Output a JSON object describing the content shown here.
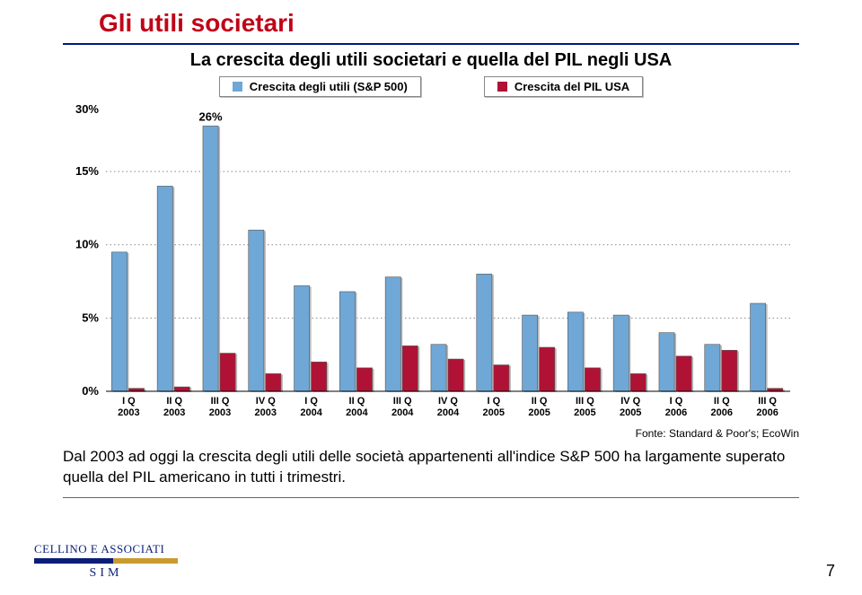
{
  "title": "Gli utili societari",
  "subtitle": "La crescita degli utili societari e quella del PIL negli USA",
  "legend": {
    "series_a": "Crescita degli utili (S&P 500)",
    "series_b": "Crescita del PIL USA"
  },
  "chart": {
    "type": "bar",
    "background_color": "#ffffff",
    "grid_color": "#e0e0e0",
    "dotted_grid_color": "#888888",
    "axis_color": "#000000",
    "label_fontsize": 10,
    "label_font": "Arial",
    "tick_font_weight": "bold",
    "y_min": 0,
    "y_max": 30,
    "y_ticks": [
      0,
      5,
      10,
      15,
      30
    ],
    "y_tick_labels": [
      "0%",
      "5%",
      "10%",
      "15%",
      "30%"
    ],
    "dotted_rows": [
      5,
      10,
      15
    ],
    "bar_gap_ratio": 0.1,
    "group_gap_ratio": 0.25,
    "bar_border": "#555555",
    "bar_shadow": "#bbbbbb",
    "annotation": {
      "category_index": 2,
      "value": 26,
      "label": "26%",
      "fontsize": 13,
      "font_weight": "bold"
    },
    "series": [
      {
        "name": "a",
        "color": "#6fa7d6",
        "values": [
          9.5,
          14.0,
          26.0,
          11.0,
          7.2,
          6.8,
          7.8,
          3.2,
          8.0,
          5.2,
          5.4,
          5.2,
          4.0,
          3.2,
          6.0
        ]
      },
      {
        "name": "b",
        "color": "#b01235",
        "values": [
          0.2,
          0.3,
          2.6,
          1.2,
          2.0,
          1.6,
          3.1,
          2.2,
          1.8,
          3.0,
          1.6,
          1.2,
          2.4,
          2.8,
          0.2
        ]
      }
    ],
    "categories": [
      "I Q\n2003",
      "II Q\n2003",
      "III Q\n2003",
      "IV Q\n2003",
      "I Q\n2004",
      "II Q\n2004",
      "III Q\n2004",
      "IV Q\n2004",
      "I Q\n2005",
      "II Q\n2005",
      "III Q\n2005",
      "IV Q\n2005",
      "I Q\n2006",
      "II Q\n2006",
      "III Q\n2006"
    ]
  },
  "source": "Fonte: Standard & Poor's; EcoWin",
  "caption": "Dal 2003 ad oggi la crescita degli utili delle società appartenenti all'indice S&P 500 ha largamente superato quella del PIL americano in tutti i trimestri.",
  "logo_top": "CELLINO E ASSOCIATI",
  "logo_bottom": "SIM",
  "page_number": "7"
}
